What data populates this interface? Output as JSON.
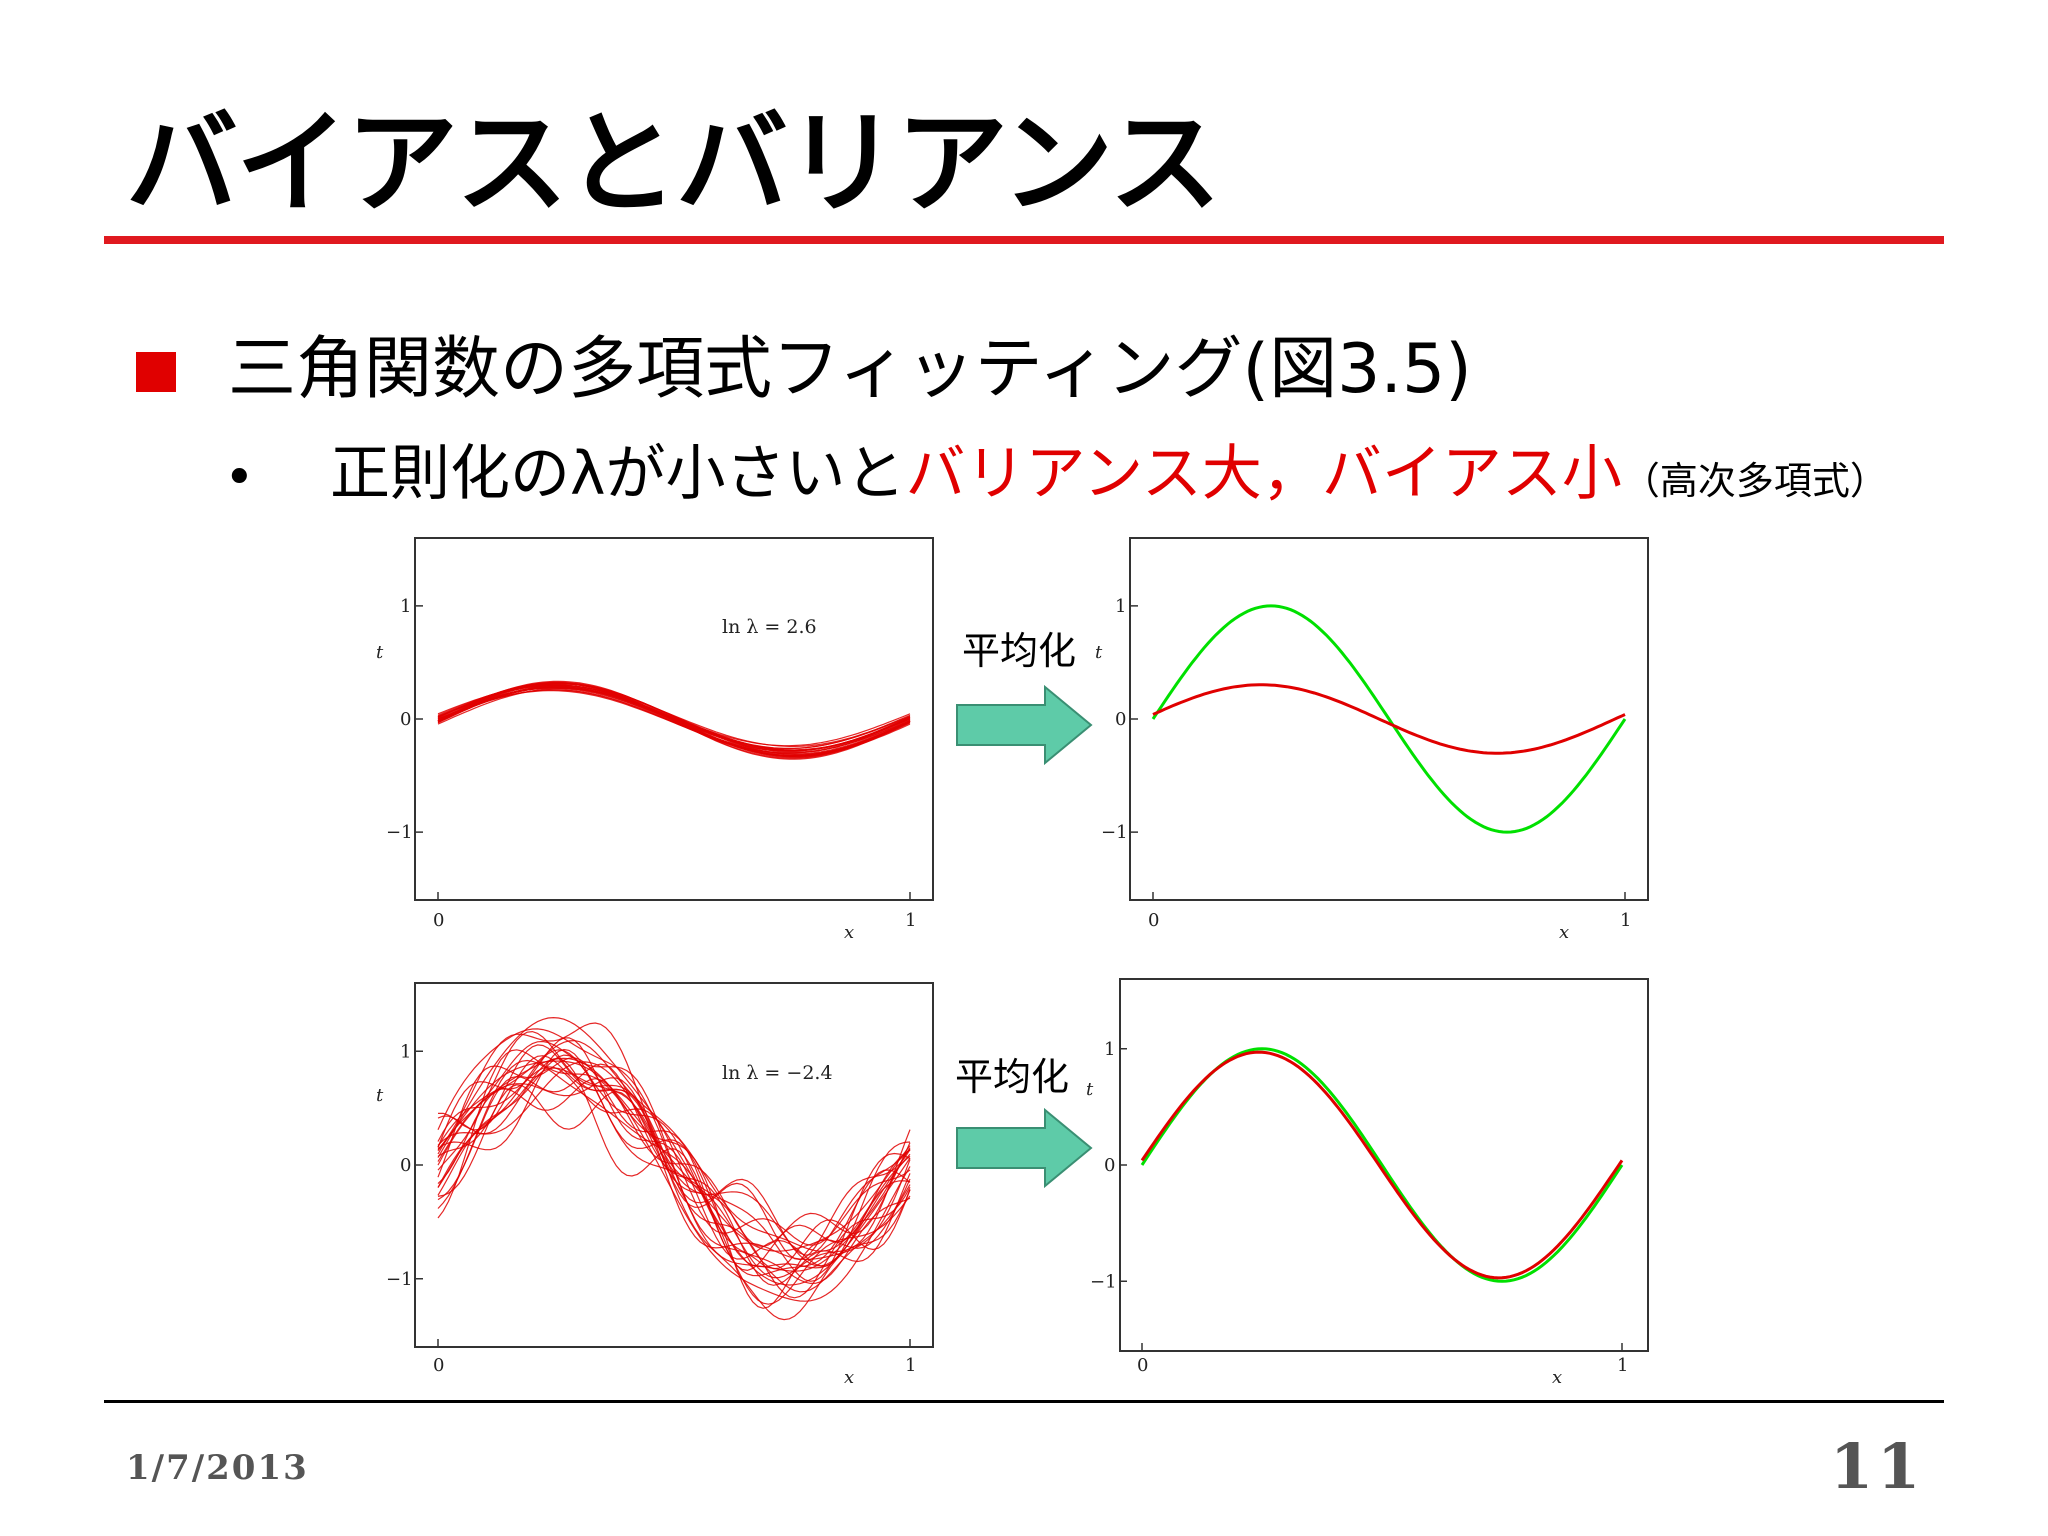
{
  "slide": {
    "title": "バイアスとバリアンス",
    "bullet_main": "三角関数の多項式フィッティング(図3.5)",
    "bullet_sub": {
      "prefix": "正則化のλが小さいと",
      "red_text": "バリアンス大，バイアス小",
      "note": "（高次多項式）"
    },
    "average_label": "平均化"
  },
  "footer": {
    "date": "1/7/2013",
    "page_number": "11"
  },
  "colors": {
    "title_rule": "#e0191f",
    "fit": "#e00000",
    "truth": "#00e000",
    "arrow": "#5ecba8"
  },
  "chart_data": [
    {
      "type": "line",
      "annotation": "ln λ = 2.6",
      "xlabel": "x",
      "ylabel": "t",
      "xlim": [
        0,
        1
      ],
      "ylim": [
        -1.6,
        1.6
      ],
      "x_ticks": [
        "0",
        "1"
      ],
      "y_ticks": [
        "−1",
        "0",
        "1"
      ],
      "series": [
        {
          "values": "many individual regularized fits (amplitude ≈ 0.3)"
        }
      ]
    },
    {
      "type": "line",
      "xlabel": "x",
      "ylabel": "t",
      "xlim": [
        0,
        1
      ],
      "ylim": [
        -1.6,
        1.6
      ],
      "x_ticks": [
        "0",
        "1"
      ],
      "y_ticks": [
        "−1",
        "0",
        "1"
      ],
      "x": [
        0,
        0.25,
        0.5,
        0.75,
        1
      ],
      "series": [
        {
          "color": "#00e000",
          "values": [
            0,
            1,
            0,
            -1,
            0
          ]
        },
        {
          "color": "#e00000",
          "values": [
            0.05,
            0.3,
            0,
            -0.32,
            -0.03
          ]
        }
      ]
    },
    {
      "type": "line",
      "annotation": "ln λ = −2.4",
      "xlabel": "x",
      "ylabel": "t",
      "xlim": [
        0,
        1
      ],
      "ylim": [
        -1.6,
        1.6
      ],
      "x_ticks": [
        "0",
        "1"
      ],
      "y_ticks": [
        "−1",
        "0",
        "1"
      ],
      "series": [
        {
          "values": "many individual weakly regularized fits (high variance)"
        }
      ]
    },
    {
      "type": "line",
      "xlabel": "x",
      "ylabel": "t",
      "xlim": [
        0,
        1
      ],
      "ylim": [
        -1.6,
        1.6
      ],
      "x_ticks": [
        "0",
        "1"
      ],
      "y_ticks": [
        "−1",
        "0",
        "1"
      ],
      "x": [
        0,
        0.25,
        0.5,
        0.75,
        1
      ],
      "series": [
        {
          "color": "#00e000",
          "values": [
            0,
            1,
            0,
            -1,
            0
          ]
        },
        {
          "color": "#e00000",
          "values": [
            0.05,
            0.97,
            0,
            -0.98,
            0
          ]
        }
      ]
    }
  ]
}
